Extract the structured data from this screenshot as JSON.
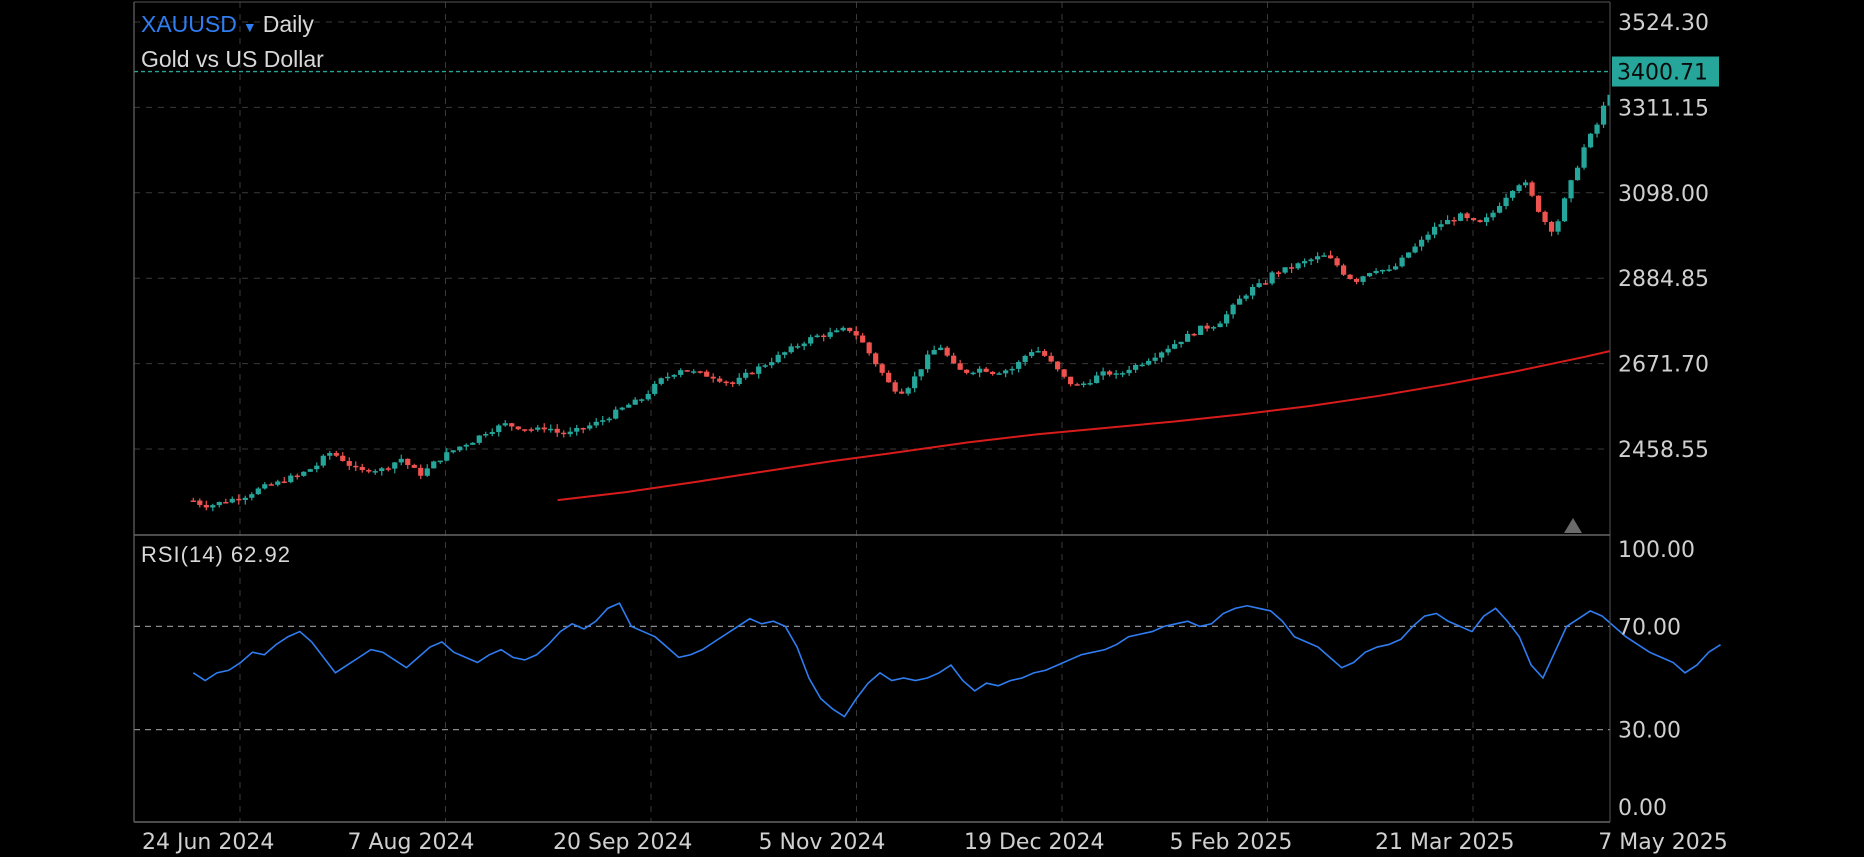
{
  "header": {
    "symbol": "XAUUSD",
    "dropdown_icon": "triangle-down-icon",
    "timeframe": "Daily",
    "description": "Gold vs US Dollar"
  },
  "rsi_legend": {
    "label": "RSI(14)",
    "value": "62.92"
  },
  "colors": {
    "background": "#000000",
    "up_candle": "#26a69a",
    "down_candle": "#ef5350",
    "moving_average": "#d81b1b",
    "rsi_line": "#2f7df0",
    "last_price_badge": "#26a69a",
    "grid": "#3a3a3a"
  },
  "chart_data": [
    {
      "type": "candlestick",
      "title": "",
      "x_ticks": [
        "24 Jun 2024",
        "7 Aug 2024",
        "20 Sep 2024",
        "5 Nov 2024",
        "19 Dec 2024",
        "5 Feb 2025",
        "21 Mar 2025",
        "7 May 2025"
      ],
      "y_ticks": [
        "3524.30",
        "3311.15",
        "3098.00",
        "2884.85",
        "2671.70",
        "2458.55"
      ],
      "ylim": [
        2330,
        3571
      ],
      "last_price": "3400.71",
      "current_candle_marker": "triangle-up-icon",
      "close_series": {
        "x_start": "2024-06-14",
        "x_end": "2025-05-07",
        "sample_step_days": 2,
        "values": [
          2330,
          2318,
          2320,
          2328,
          2335,
          2342,
          2355,
          2365,
          2372,
          2385,
          2390,
          2405,
          2420,
          2450,
          2440,
          2420,
          2400,
          2410,
          2405,
          2420,
          2435,
          2410,
          2395,
          2420,
          2440,
          2455,
          2470,
          2480,
          2500,
          2510,
          2520,
          2515,
          2510,
          2505,
          2515,
          2500,
          2495,
          2505,
          2515,
          2525,
          2540,
          2555,
          2570,
          2580,
          2605,
          2630,
          2645,
          2660,
          2650,
          2645,
          2640,
          2630,
          2620,
          2640,
          2655,
          2670,
          2685,
          2700,
          2715,
          2730,
          2740,
          2745,
          2750,
          2760,
          2740,
          2700,
          2660,
          2620,
          2600,
          2620,
          2660,
          2700,
          2715,
          2670,
          2650,
          2655,
          2660,
          2650,
          2655,
          2660,
          2690,
          2710,
          2690,
          2660,
          2630,
          2615,
          2625,
          2640,
          2650,
          2640,
          2660,
          2670,
          2685,
          2700,
          2715,
          2730,
          2745,
          2760,
          2765,
          2780,
          2810,
          2840,
          2860,
          2870,
          2900,
          2905,
          2915,
          2925,
          2935,
          2940,
          2920,
          2890,
          2880,
          2900,
          2910,
          2900,
          2920,
          2950,
          2970,
          3000,
          3020,
          3030,
          3040,
          3025,
          3020,
          3045,
          3080,
          3110,
          3130,
          3080,
          3030,
          3000,
          3080,
          3150,
          3220,
          3260,
          3330,
          3380,
          3360,
          3340,
          3320,
          3310,
          3300,
          3280,
          3270,
          3260,
          3320,
          3400
        ]
      },
      "moving_average": {
        "x_start": "2024-08-31",
        "x_end": "2025-05-07",
        "values": [
          2331,
          2351,
          2376,
          2402,
          2428,
          2451,
          2475,
          2495,
          2511,
          2527,
          2545,
          2566,
          2591,
          2620,
          2652,
          2688,
          2727,
          2775
        ]
      }
    },
    {
      "type": "line",
      "title": "",
      "series": [
        {
          "name": "",
          "values": [
            52,
            49,
            52,
            53,
            56,
            60,
            59,
            63,
            66,
            68,
            64,
            58,
            52,
            55,
            58,
            61,
            60,
            57,
            54,
            58,
            62,
            64,
            60,
            58,
            56,
            59,
            61,
            58,
            57,
            59,
            63,
            68,
            71,
            69,
            72,
            77,
            79,
            70,
            68,
            66,
            62,
            58,
            59,
            61,
            64,
            67,
            70,
            73,
            71,
            72,
            70,
            62,
            50,
            42,
            38,
            35,
            42,
            48,
            52,
            49,
            50,
            49,
            50,
            52,
            55,
            49,
            45,
            48,
            47,
            49,
            50,
            52,
            53,
            55,
            57,
            59,
            60,
            61,
            63,
            66,
            67,
            68,
            70,
            71,
            72,
            70,
            71,
            75,
            77,
            78,
            77,
            76,
            72,
            66,
            64,
            62,
            58,
            54,
            56,
            60,
            62,
            63,
            65,
            70,
            74,
            75,
            72,
            70,
            68,
            74,
            77,
            72,
            66,
            55,
            50,
            60,
            70,
            73,
            76,
            74,
            70,
            66,
            63,
            60,
            58,
            56,
            52,
            55,
            60,
            62.92
          ]
        }
      ],
      "x_ticks": [
        "24 Jun 2024",
        "7 Aug 2024",
        "20 Sep 2024",
        "5 Nov 2024",
        "19 Dec 2024",
        "5 Feb 2025",
        "21 Mar 2025",
        "7 May 2025"
      ],
      "y_ticks": [
        "100.00",
        "70.00",
        "30.00",
        "0.00"
      ],
      "ylim": [
        0,
        100
      ],
      "reference_lines": [
        70,
        30
      ],
      "grid": true
    }
  ]
}
